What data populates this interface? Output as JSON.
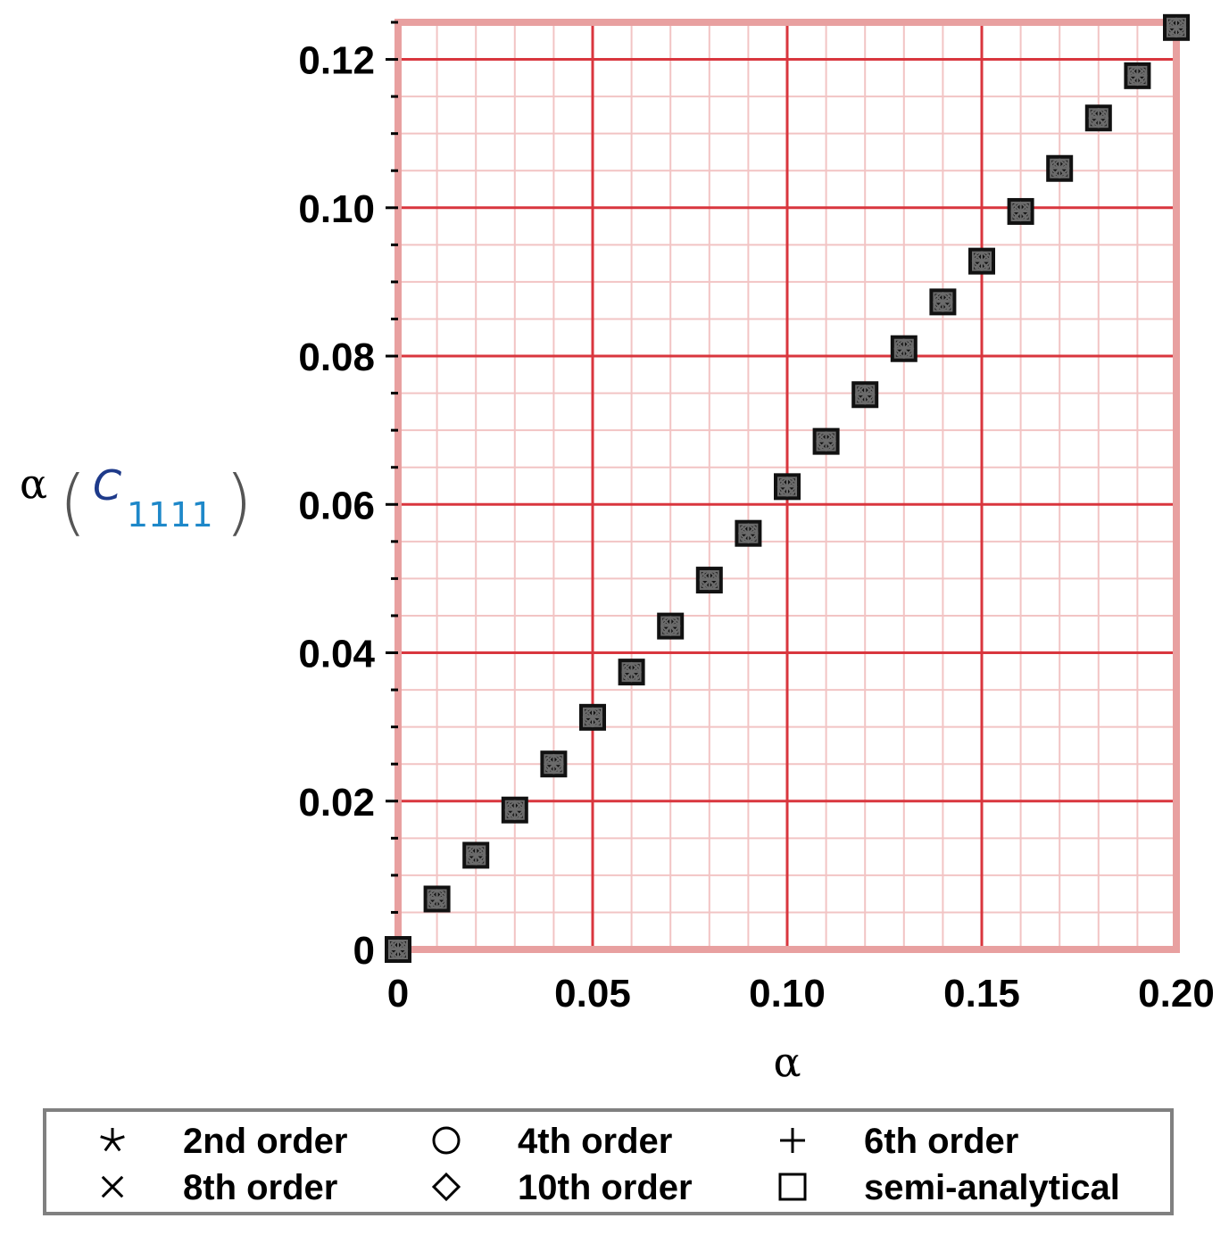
{
  "chart_data": {
    "type": "scatter",
    "title": "",
    "xlabel": "α",
    "ylabel": {
      "symbol": "α",
      "open_paren": "(",
      "variable": "C",
      "subscript": "1111",
      "close_paren": ")"
    },
    "xlim": [
      0,
      0.2
    ],
    "ylim": [
      0,
      0.125
    ],
    "x_ticks": [
      "0",
      "0.05",
      "0.10",
      "0.15",
      "0.20"
    ],
    "x_tick_values": [
      0,
      0.05,
      0.1,
      0.15,
      0.2
    ],
    "y_ticks": [
      "0",
      "0.02",
      "0.04",
      "0.06",
      "0.08",
      "0.10",
      "0.12"
    ],
    "y_tick_values": [
      0,
      0.02,
      0.04,
      0.06,
      0.08,
      0.1,
      0.12
    ],
    "grid": true,
    "legend_position": "bottom",
    "colors": {
      "frame": "#e8a0a0",
      "major_grid": "#d9363e",
      "minor_grid": "#f2c4c4",
      "marker": "#111111",
      "legend_border": "#808080"
    },
    "x": [
      0,
      0.01,
      0.02,
      0.03,
      0.04,
      0.05,
      0.06,
      0.07,
      0.08,
      0.09,
      0.1,
      0.11,
      0.12,
      0.13,
      0.14,
      0.15,
      0.16,
      0.17,
      0.18,
      0.19,
      0.2
    ],
    "series": [
      {
        "name": "2nd order",
        "marker": "asterisk"
      },
      {
        "name": "4th order",
        "marker": "circle"
      },
      {
        "name": "6th order",
        "marker": "plus"
      },
      {
        "name": "8th order",
        "marker": "cross"
      },
      {
        "name": "10th order",
        "marker": "diamond"
      },
      {
        "name": "semi-analytical",
        "marker": "square"
      }
    ],
    "values": [
      0,
      0.0068,
      0.0127,
      0.0188,
      0.025,
      0.0313,
      0.0374,
      0.0436,
      0.0498,
      0.0561,
      0.0624,
      0.0685,
      0.0748,
      0.081,
      0.0873,
      0.0928,
      0.0995,
      0.1053,
      0.1121,
      0.1178,
      0.1243
    ]
  }
}
